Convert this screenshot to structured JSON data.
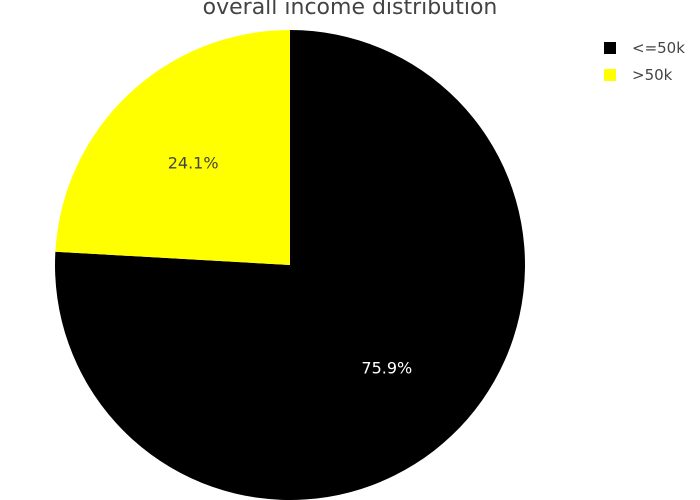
{
  "chart_data": {
    "type": "pie",
    "title": "overall income distribution",
    "slices": [
      {
        "label": "<=50k",
        "value": 75.9,
        "display": "75.9%",
        "color": "#000000",
        "text_color": "#ffffff"
      },
      {
        "label": ">50k",
        "value": 24.1,
        "display": "24.1%",
        "color": "#ffff00",
        "text_color": "#444444"
      }
    ],
    "legend_position": "top-right",
    "start_angle": "12 o'clock",
    "direction": "clockwise"
  }
}
